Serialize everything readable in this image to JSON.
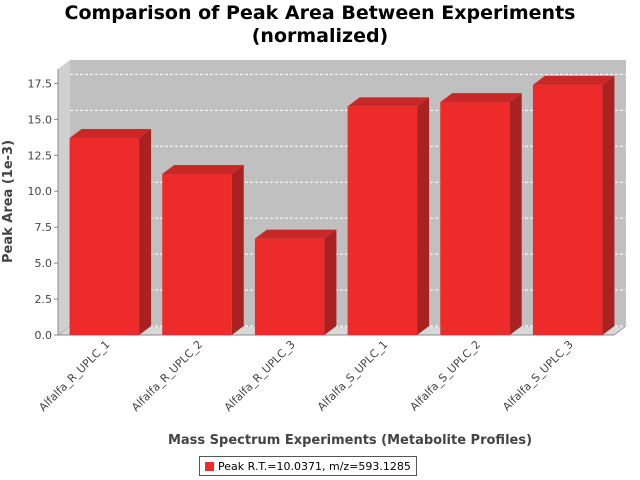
{
  "chart_data": {
    "type": "bar",
    "title_lines": [
      "Comparison of Peak Area Between Experiments",
      "(normalized)"
    ],
    "xlabel": "Mass Spectrum Experiments (Metabolite Profiles)",
    "ylabel": "Peak Area (1e-3)",
    "categories": [
      "Alfalfa_R_UPLC_1",
      "Alfalfa_R_UPLC_2",
      "Alfalfa_R_UPLC_3",
      "Alfalfa_S_UPLC_1",
      "Alfalfa_S_UPLC_2",
      "Alfalfa_S_UPLC_3"
    ],
    "series": [
      {
        "name": "Peak R.T.=10.0371, m/z=593.1285",
        "color": "#ee2b2b",
        "values": [
          13.7,
          11.2,
          6.7,
          15.9,
          16.2,
          17.4
        ]
      }
    ],
    "ylim": [
      0,
      18.5
    ],
    "yticks": [
      0.0,
      2.5,
      5.0,
      7.5,
      10.0,
      12.5,
      15.0,
      17.5
    ],
    "ytick_labels": [
      "0.0",
      "2.5",
      "5.0",
      "7.5",
      "10.0",
      "12.5",
      "15.0",
      "17.5"
    ],
    "grid": true,
    "legend_position": "bottom",
    "plot_background": "#c0c0c0"
  }
}
